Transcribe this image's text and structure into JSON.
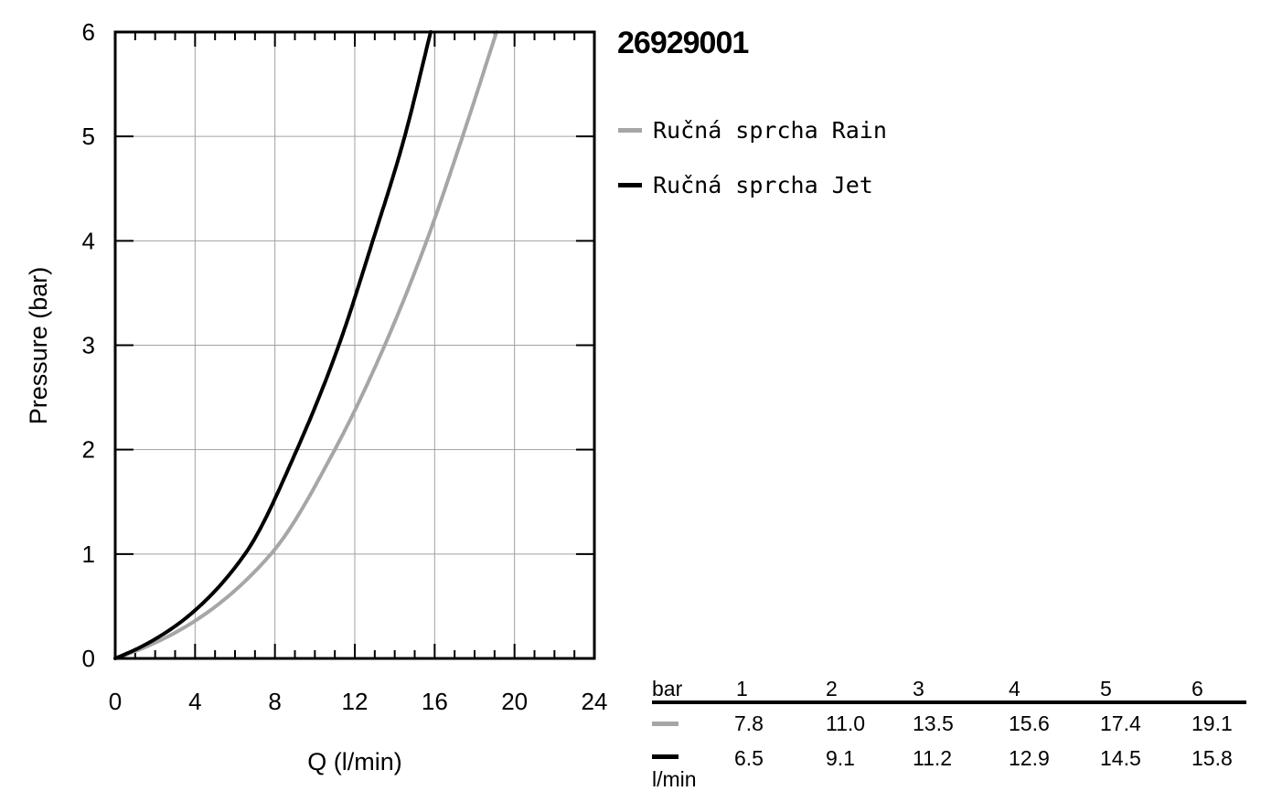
{
  "product_code": "26929001",
  "legend": [
    {
      "label": "Ručná sprcha Rain",
      "color": "#a6a6a6"
    },
    {
      "label": "Ručná sprcha Jet",
      "color": "#000000"
    }
  ],
  "chart_data": {
    "type": "line",
    "title": "26929001",
    "xlabel": "Q (l/min)",
    "ylabel": "Pressure (bar)",
    "xlim": [
      0,
      24
    ],
    "ylim": [
      0,
      6
    ],
    "x_ticks": [
      "0",
      "4",
      "8",
      "12",
      "16",
      "20",
      "24"
    ],
    "y_ticks": [
      "0",
      "1",
      "2",
      "3",
      "4",
      "5",
      "6"
    ],
    "grid": true,
    "legend_position": "right",
    "series": [
      {
        "name": "Ručná sprcha Rain",
        "color": "#a6a6a6",
        "x": [
          0,
          7.8,
          11.0,
          13.5,
          15.6,
          17.4,
          19.1
        ],
        "y": [
          0,
          1,
          2,
          3,
          4,
          5,
          6
        ]
      },
      {
        "name": "Ručná sprcha Jet",
        "color": "#000000",
        "x": [
          0,
          6.5,
          9.1,
          11.2,
          12.9,
          14.5,
          15.8
        ],
        "y": [
          0,
          1,
          2,
          3,
          4,
          5,
          6
        ]
      }
    ]
  },
  "flow_table": {
    "pressure_unit": "bar",
    "flow_unit": "l/min",
    "pressures": [
      "1",
      "2",
      "3",
      "4",
      "5",
      "6"
    ],
    "rows": [
      {
        "color": "#a6a6a6",
        "values": [
          "7.8",
          "11.0",
          "13.5",
          "15.6",
          "17.4",
          "19.1"
        ]
      },
      {
        "color": "#000000",
        "values": [
          "6.5",
          "9.1",
          "11.2",
          "12.9",
          "14.5",
          "15.8"
        ]
      }
    ]
  }
}
